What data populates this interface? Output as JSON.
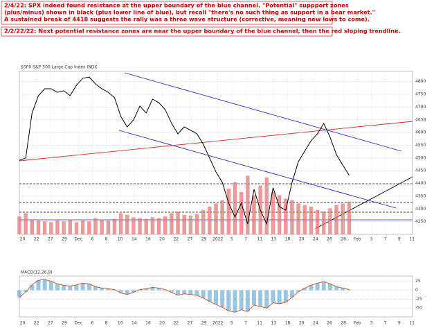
{
  "chart_data": [
    {
      "type": "line",
      "title": "$SPX S&P 500 Large Cap Index INDX",
      "annotations": [
        [
          "2/4/22:  SPX indeed found resistance at the upper boundary of the blue channel.  \"Potential\" suppport zones",
          "(plus/minus) shown in black (plus lower line of blue), but recall \"there's no such thing as support in a bear market.\"",
          "A sustained break of 4418 suggests the rally was a three wave structure (corrective, meaning new lows to come)."
        ],
        [
          "2/2/22/22:  Next potential resistance zones are near the upper boundary of the blue channel, then the red sloping trendline."
        ]
      ],
      "values": [
        4491,
        4500,
        4677,
        4745,
        4772,
        4772,
        4758,
        4764,
        4745,
        4786,
        4813,
        4818,
        4791,
        4772,
        4758,
        4737,
        4663,
        4622,
        4649,
        4704,
        4677,
        4731,
        4717,
        4690,
        4636,
        4595,
        4622,
        4609,
        4595,
        4554,
        4500,
        4445,
        4404,
        4323,
        4268,
        4323,
        4241,
        4377,
        4295,
        4241,
        4383,
        4309,
        4295,
        4404,
        4486,
        4527,
        4568,
        4595,
        4636,
        4581,
        4513,
        4472,
        4432
      ],
      "color": "#000000",
      "volume": [
        220,
        260,
        180,
        170,
        160,
        150,
        170,
        160,
        180,
        150,
        170,
        160,
        200,
        180,
        170,
        190,
        260,
        240,
        210,
        200,
        190,
        210,
        200,
        220,
        260,
        280,
        240,
        230,
        250,
        300,
        340,
        380,
        420,
        560,
        640,
        520,
        720,
        480,
        600,
        700,
        520,
        480,
        440,
        420,
        380,
        360,
        340,
        300,
        280,
        320,
        360,
        380,
        400
      ],
      "volume_color": "#e07070",
      "y2lim": [
        0,
        2000
      ],
      "ylim": [
        4200,
        4840
      ],
      "yticks": [
        4250,
        4300,
        4350,
        4400,
        4450,
        4500,
        4550,
        4600,
        4650,
        4700,
        4750,
        4800
      ],
      "xlim": [
        0,
        62
      ],
      "xticks": [
        {
          "value": 0.5,
          "label": "20"
        },
        {
          "value": 2.7,
          "label": "22"
        },
        {
          "value": 4.9,
          "label": "27"
        },
        {
          "value": 7.1,
          "label": "29"
        },
        {
          "value": 9.3,
          "label": "Dec"
        },
        {
          "value": 11.5,
          "label": "6"
        },
        {
          "value": 13.7,
          "label": "8"
        },
        {
          "value": 15.9,
          "label": "10"
        },
        {
          "value": 18.1,
          "label": "14"
        },
        {
          "value": 20.3,
          "label": "16"
        },
        {
          "value": 22.5,
          "label": "20"
        },
        {
          "value": 24.7,
          "label": "22"
        },
        {
          "value": 26.9,
          "label": "27"
        },
        {
          "value": 29.1,
          "label": "29"
        },
        {
          "value": 31.3,
          "label": "2022"
        },
        {
          "value": 33.5,
          "label": "5"
        },
        {
          "value": 35.7,
          "label": "7"
        },
        {
          "value": 37.9,
          "label": "11"
        },
        {
          "value": 40.1,
          "label": "13"
        },
        {
          "value": 42.3,
          "label": "18"
        },
        {
          "value": 44.5,
          "label": "20"
        },
        {
          "value": 46.7,
          "label": "24"
        },
        {
          "value": 48.9,
          "label": "26"
        },
        {
          "value": 51.1,
          "label": "28"
        },
        {
          "value": 53.3,
          "label": "Feb"
        },
        {
          "value": 55.5,
          "label": "3"
        },
        {
          "value": 57.7,
          "label": "7"
        },
        {
          "value": 59.9,
          "label": "9"
        },
        {
          "value": 61.9,
          "label": "11"
        }
      ],
      "grid": true
    },
    {
      "type": "line",
      "title": "MACD(12,26,9)",
      "values": [
        -20,
        -5,
        15,
        28,
        30,
        25,
        18,
        14,
        12,
        15,
        20,
        18,
        10,
        6,
        4,
        2,
        -8,
        -12,
        -6,
        2,
        4,
        8,
        6,
        2,
        -6,
        -14,
        -10,
        -12,
        -14,
        -22,
        -32,
        -40,
        -48,
        -58,
        -62,
        -55,
        -60,
        -42,
        -46,
        -50,
        -35,
        -38,
        -34,
        -20,
        -4,
        6,
        14,
        20,
        24,
        18,
        10,
        6,
        2
      ],
      "color": "#c05020",
      "ylim": [
        -75,
        40
      ],
      "yticks": [
        25,
        0,
        -25,
        -50
      ],
      "grid": true
    }
  ]
}
